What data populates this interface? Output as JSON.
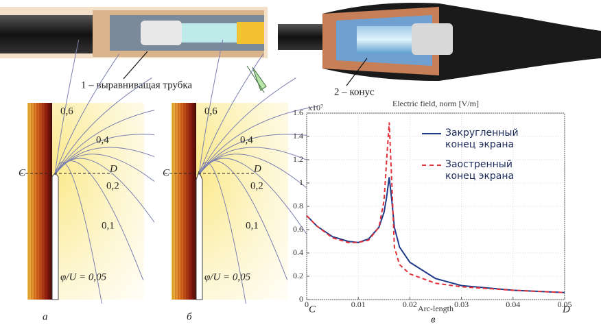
{
  "figure": {
    "label_1": "1 – выравниващая трубка",
    "label_2": "2 – конус",
    "panels": [
      {
        "levels": [
          "0,6",
          "0,4",
          "0,2",
          "0,1"
        ],
        "point_c": "C",
        "point_d": "D",
        "potential": "φ/U = 0,05",
        "caption": "а"
      },
      {
        "levels": [
          "0,6",
          "0,4",
          "0,2",
          "0,1"
        ],
        "point_c": "C",
        "point_d": "D",
        "potential": "φ/U = 0,05",
        "caption": "б"
      }
    ]
  },
  "chart_data": {
    "type": "line",
    "title": "Electric field, norm [V/m]",
    "y_scale_label": "x10⁷",
    "x_label": "Arc-length",
    "annotations": [
      "C",
      "D"
    ],
    "caption": "в",
    "x": [
      0,
      0.002,
      0.005,
      0.008,
      0.01,
      0.012,
      0.014,
      0.015,
      0.0155,
      0.016,
      0.0165,
      0.017,
      0.018,
      0.02,
      0.025,
      0.03,
      0.04,
      0.05
    ],
    "series": [
      {
        "name": "Закругленный конец экрана",
        "color": "#1f3a8a",
        "dash": false,
        "values": [
          0.72,
          0.63,
          0.54,
          0.5,
          0.49,
          0.52,
          0.62,
          0.75,
          0.88,
          1.05,
          0.85,
          0.62,
          0.45,
          0.32,
          0.18,
          0.12,
          0.08,
          0.06
        ]
      },
      {
        "name": "Заостренный конец экрана",
        "color": "#e0303a",
        "dash": true,
        "values": [
          0.72,
          0.63,
          0.53,
          0.49,
          0.49,
          0.51,
          0.62,
          0.85,
          1.2,
          1.52,
          1.0,
          0.45,
          0.3,
          0.22,
          0.14,
          0.11,
          0.08,
          0.06
        ]
      }
    ],
    "xlim": [
      0,
      0.05
    ],
    "ylim": [
      0,
      1.6
    ],
    "xticks": [
      0,
      0.01,
      0.02,
      0.03,
      0.04,
      0.05
    ],
    "yticks": [
      0,
      0.2,
      0.4,
      0.6,
      0.8,
      1,
      1.2,
      1.4,
      1.6
    ],
    "grid": true
  }
}
